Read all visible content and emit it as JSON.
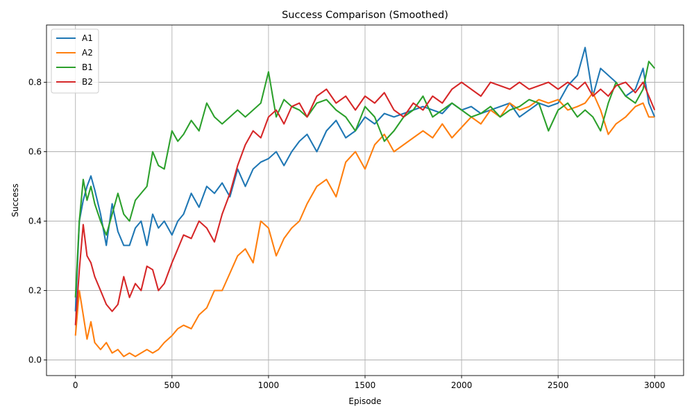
{
  "chart_data": {
    "type": "line",
    "title": "Success Comparison (Smoothed)",
    "xlabel": "Episode",
    "ylabel": "Success",
    "xlim": [
      -150,
      3150
    ],
    "ylim": [
      -0.045,
      0.965
    ],
    "xticks": [
      0,
      500,
      1000,
      1500,
      2000,
      2500,
      3000
    ],
    "yticks": [
      0.0,
      0.2,
      0.4,
      0.6,
      0.8
    ],
    "xtick_labels": [
      "0",
      "500",
      "1000",
      "1500",
      "2000",
      "2500",
      "3000"
    ],
    "ytick_labels": [
      "0.0",
      "0.2",
      "0.4",
      "0.6",
      "0.8"
    ],
    "grid": true,
    "legend_position": "top-left",
    "series": [
      {
        "name": "A1",
        "color": "#1f77b4",
        "x": [
          0,
          20,
          40,
          60,
          80,
          100,
          130,
          160,
          190,
          220,
          250,
          280,
          310,
          340,
          370,
          400,
          430,
          460,
          500,
          530,
          560,
          600,
          640,
          680,
          720,
          760,
          800,
          840,
          880,
          920,
          960,
          1000,
          1040,
          1080,
          1120,
          1160,
          1200,
          1250,
          1300,
          1350,
          1400,
          1450,
          1500,
          1550,
          1600,
          1650,
          1700,
          1750,
          1800,
          1850,
          1900,
          1950,
          2000,
          2050,
          2100,
          2150,
          2200,
          2250,
          2300,
          2350,
          2400,
          2450,
          2500,
          2550,
          2600,
          2640,
          2680,
          2720,
          2760,
          2800,
          2850,
          2900,
          2940,
          2970,
          3000
        ],
        "y": [
          0.14,
          0.4,
          0.46,
          0.5,
          0.53,
          0.49,
          0.42,
          0.33,
          0.45,
          0.37,
          0.33,
          0.33,
          0.38,
          0.4,
          0.33,
          0.42,
          0.38,
          0.4,
          0.36,
          0.4,
          0.42,
          0.48,
          0.44,
          0.5,
          0.48,
          0.51,
          0.47,
          0.55,
          0.5,
          0.55,
          0.57,
          0.58,
          0.6,
          0.56,
          0.6,
          0.63,
          0.65,
          0.6,
          0.66,
          0.69,
          0.64,
          0.66,
          0.7,
          0.68,
          0.71,
          0.7,
          0.71,
          0.72,
          0.73,
          0.72,
          0.71,
          0.74,
          0.72,
          0.73,
          0.71,
          0.72,
          0.73,
          0.74,
          0.7,
          0.72,
          0.74,
          0.73,
          0.74,
          0.79,
          0.82,
          0.9,
          0.76,
          0.84,
          0.82,
          0.8,
          0.76,
          0.78,
          0.84,
          0.74,
          0.7
        ]
      },
      {
        "name": "A2",
        "color": "#ff7f0e",
        "x": [
          0,
          20,
          40,
          60,
          80,
          100,
          130,
          160,
          190,
          220,
          250,
          280,
          310,
          340,
          370,
          400,
          430,
          460,
          500,
          530,
          560,
          600,
          640,
          680,
          720,
          760,
          800,
          840,
          880,
          920,
          960,
          1000,
          1040,
          1080,
          1120,
          1160,
          1200,
          1250,
          1300,
          1350,
          1400,
          1450,
          1500,
          1550,
          1600,
          1650,
          1700,
          1750,
          1800,
          1850,
          1900,
          1950,
          2000,
          2050,
          2100,
          2150,
          2200,
          2250,
          2300,
          2350,
          2400,
          2450,
          2500,
          2550,
          2600,
          2640,
          2680,
          2720,
          2760,
          2800,
          2850,
          2900,
          2940,
          2970,
          3000
        ],
        "y": [
          0.07,
          0.2,
          0.13,
          0.06,
          0.11,
          0.05,
          0.03,
          0.05,
          0.02,
          0.03,
          0.01,
          0.02,
          0.01,
          0.02,
          0.03,
          0.02,
          0.03,
          0.05,
          0.07,
          0.09,
          0.1,
          0.09,
          0.13,
          0.15,
          0.2,
          0.2,
          0.25,
          0.3,
          0.32,
          0.28,
          0.4,
          0.38,
          0.3,
          0.35,
          0.38,
          0.4,
          0.45,
          0.5,
          0.52,
          0.47,
          0.57,
          0.6,
          0.55,
          0.62,
          0.65,
          0.6,
          0.62,
          0.64,
          0.66,
          0.64,
          0.68,
          0.64,
          0.67,
          0.7,
          0.68,
          0.72,
          0.7,
          0.74,
          0.72,
          0.73,
          0.75,
          0.74,
          0.75,
          0.72,
          0.73,
          0.74,
          0.77,
          0.72,
          0.65,
          0.68,
          0.7,
          0.73,
          0.74,
          0.7,
          0.7
        ]
      },
      {
        "name": "B1",
        "color": "#2ca02c",
        "x": [
          0,
          20,
          40,
          60,
          80,
          100,
          130,
          160,
          190,
          220,
          250,
          280,
          310,
          340,
          370,
          400,
          430,
          460,
          500,
          530,
          560,
          600,
          640,
          680,
          720,
          760,
          800,
          840,
          880,
          920,
          960,
          1000,
          1040,
          1080,
          1120,
          1160,
          1200,
          1250,
          1300,
          1350,
          1400,
          1450,
          1500,
          1550,
          1600,
          1650,
          1700,
          1750,
          1800,
          1850,
          1900,
          1950,
          2000,
          2050,
          2100,
          2150,
          2200,
          2250,
          2300,
          2350,
          2400,
          2450,
          2500,
          2550,
          2600,
          2640,
          2680,
          2720,
          2760,
          2800,
          2850,
          2900,
          2940,
          2970,
          3000
        ],
        "y": [
          0.18,
          0.4,
          0.52,
          0.46,
          0.5,
          0.45,
          0.4,
          0.36,
          0.42,
          0.48,
          0.42,
          0.4,
          0.46,
          0.48,
          0.5,
          0.6,
          0.56,
          0.55,
          0.66,
          0.63,
          0.65,
          0.69,
          0.66,
          0.74,
          0.7,
          0.68,
          0.7,
          0.72,
          0.7,
          0.72,
          0.74,
          0.83,
          0.7,
          0.75,
          0.73,
          0.72,
          0.7,
          0.74,
          0.75,
          0.72,
          0.7,
          0.66,
          0.73,
          0.7,
          0.63,
          0.66,
          0.7,
          0.72,
          0.76,
          0.7,
          0.72,
          0.74,
          0.72,
          0.7,
          0.71,
          0.73,
          0.7,
          0.72,
          0.73,
          0.75,
          0.74,
          0.66,
          0.72,
          0.74,
          0.7,
          0.72,
          0.7,
          0.66,
          0.74,
          0.8,
          0.76,
          0.74,
          0.78,
          0.86,
          0.84
        ]
      },
      {
        "name": "B2",
        "color": "#d62728",
        "x": [
          0,
          20,
          40,
          60,
          80,
          100,
          130,
          160,
          190,
          220,
          250,
          280,
          310,
          340,
          370,
          400,
          430,
          460,
          500,
          530,
          560,
          600,
          640,
          680,
          720,
          760,
          800,
          840,
          880,
          920,
          960,
          1000,
          1040,
          1080,
          1120,
          1160,
          1200,
          1250,
          1300,
          1350,
          1400,
          1450,
          1500,
          1550,
          1600,
          1650,
          1700,
          1750,
          1800,
          1850,
          1900,
          1950,
          2000,
          2050,
          2100,
          2150,
          2200,
          2250,
          2300,
          2350,
          2400,
          2450,
          2500,
          2550,
          2600,
          2640,
          2680,
          2720,
          2760,
          2800,
          2850,
          2900,
          2940,
          2970,
          3000
        ],
        "y": [
          0.1,
          0.26,
          0.39,
          0.3,
          0.28,
          0.24,
          0.2,
          0.16,
          0.14,
          0.16,
          0.24,
          0.18,
          0.22,
          0.2,
          0.27,
          0.26,
          0.2,
          0.22,
          0.28,
          0.32,
          0.36,
          0.35,
          0.4,
          0.38,
          0.34,
          0.42,
          0.48,
          0.56,
          0.62,
          0.66,
          0.64,
          0.7,
          0.72,
          0.68,
          0.73,
          0.74,
          0.7,
          0.76,
          0.78,
          0.74,
          0.76,
          0.72,
          0.76,
          0.74,
          0.77,
          0.72,
          0.7,
          0.74,
          0.72,
          0.76,
          0.74,
          0.78,
          0.8,
          0.78,
          0.76,
          0.8,
          0.79,
          0.78,
          0.8,
          0.78,
          0.79,
          0.8,
          0.78,
          0.8,
          0.78,
          0.8,
          0.76,
          0.78,
          0.76,
          0.79,
          0.8,
          0.77,
          0.8,
          0.76,
          0.72
        ]
      }
    ]
  }
}
